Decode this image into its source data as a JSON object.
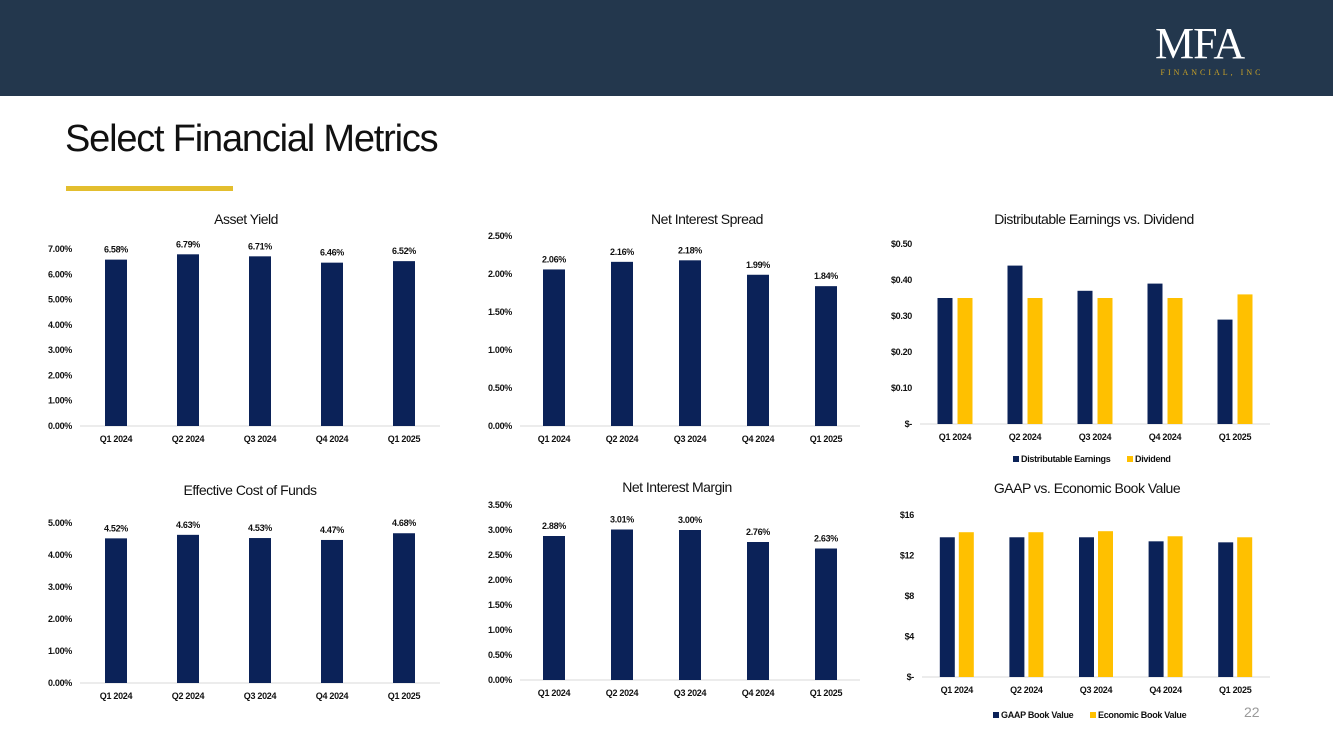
{
  "header": {
    "logo_main": "MFA",
    "logo_sub": "FINANCIAL, INC",
    "brand_color": "#23374D",
    "accent_color": "#E3BE2E"
  },
  "page": {
    "title": "Select Financial Metrics",
    "page_number": "22"
  },
  "colors": {
    "navy": "#0B2258",
    "gold": "#FFC000"
  },
  "chart_data": [
    {
      "id": "asset-yield",
      "type": "bar",
      "title": "Asset Yield",
      "categories": [
        "Q1 2024",
        "Q2 2024",
        "Q3 2024",
        "Q4 2024",
        "Q1 2025"
      ],
      "series": [
        {
          "name": "Asset Yield",
          "values": [
            6.58,
            6.79,
            6.71,
            6.46,
            6.52
          ],
          "color": "#0B2258"
        }
      ],
      "data_labels": [
        "6.58%",
        "6.79%",
        "6.71%",
        "6.46%",
        "6.52%"
      ],
      "ylim": [
        0,
        7
      ],
      "yticks": [
        0,
        1,
        2,
        3,
        4,
        5,
        6,
        7
      ],
      "ytick_labels": [
        "0.00%",
        "1.00%",
        "2.00%",
        "3.00%",
        "4.00%",
        "5.00%",
        "6.00%",
        "7.00%"
      ],
      "grid": false
    },
    {
      "id": "net-interest-spread",
      "type": "bar",
      "title": "Net Interest Spread",
      "categories": [
        "Q1 2024",
        "Q2 2024",
        "Q3 2024",
        "Q4 2024",
        "Q1 2025"
      ],
      "series": [
        {
          "name": "Net Interest Spread",
          "values": [
            2.06,
            2.16,
            2.18,
            1.99,
            1.84
          ],
          "color": "#0B2258"
        }
      ],
      "data_labels": [
        "2.06%",
        "2.16%",
        "2.18%",
        "1.99%",
        "1.84%"
      ],
      "ylim": [
        0,
        2.5
      ],
      "yticks": [
        0,
        0.5,
        1,
        1.5,
        2,
        2.5
      ],
      "ytick_labels": [
        "0.00%",
        "0.50%",
        "1.00%",
        "1.50%",
        "2.00%",
        "2.50%"
      ],
      "grid": false
    },
    {
      "id": "distributable-earnings",
      "type": "bar",
      "title": "Distributable Earnings vs. Dividend",
      "categories": [
        "Q1 2024",
        "Q2 2024",
        "Q3 2024",
        "Q4 2024",
        "Q1 2025"
      ],
      "series": [
        {
          "name": "Distributable Earnings",
          "values": [
            0.35,
            0.44,
            0.37,
            0.39,
            0.29
          ],
          "color": "#0B2258"
        },
        {
          "name": "Dividend",
          "values": [
            0.35,
            0.35,
            0.35,
            0.35,
            0.36
          ],
          "color": "#FFC000"
        }
      ],
      "ylim": [
        0,
        0.5
      ],
      "yticks": [
        0,
        0.1,
        0.2,
        0.3,
        0.4,
        0.5
      ],
      "ytick_labels": [
        "$-",
        "$0.10",
        "$0.20",
        "$0.30",
        "$0.40",
        "$0.50"
      ],
      "legend_position": "bottom",
      "grid": false
    },
    {
      "id": "cost-of-funds",
      "type": "bar",
      "title": "Effective  Cost of Funds",
      "categories": [
        "Q1 2024",
        "Q2 2024",
        "Q3 2024",
        "Q4 2024",
        "Q1 2025"
      ],
      "series": [
        {
          "name": "Effective Cost of Funds",
          "values": [
            4.52,
            4.63,
            4.53,
            4.47,
            4.68
          ],
          "color": "#0B2258"
        }
      ],
      "data_labels": [
        "4.52%",
        "4.63%",
        "4.53%",
        "4.47%",
        "4.68%"
      ],
      "ylim": [
        0,
        5
      ],
      "yticks": [
        0,
        1,
        2,
        3,
        4,
        5
      ],
      "ytick_labels": [
        "0.00%",
        "1.00%",
        "2.00%",
        "3.00%",
        "4.00%",
        "5.00%"
      ],
      "grid": false
    },
    {
      "id": "net-interest-margin",
      "type": "bar",
      "title": "Net Interest Margin",
      "categories": [
        "Q1 2024",
        "Q2 2024",
        "Q3 2024",
        "Q4 2024",
        "Q1 2025"
      ],
      "series": [
        {
          "name": "Net Interest Margin",
          "values": [
            2.88,
            3.01,
            3.0,
            2.76,
            2.63
          ],
          "color": "#0B2258"
        }
      ],
      "data_labels": [
        "2.88%",
        "3.01%",
        "3.00%",
        "2.76%",
        "2.63%"
      ],
      "ylim": [
        0,
        3.5
      ],
      "yticks": [
        0,
        0.5,
        1,
        1.5,
        2,
        2.5,
        3,
        3.5
      ],
      "ytick_labels": [
        "0.00%",
        "0.50%",
        "1.00%",
        "1.50%",
        "2.00%",
        "2.50%",
        "3.00%",
        "3.50%"
      ],
      "grid": false
    },
    {
      "id": "book-value",
      "type": "bar",
      "title": "GAAP vs. Economic Book Value",
      "categories": [
        "Q1 2024",
        "Q2 2024",
        "Q3 2024",
        "Q4 2024",
        "Q1 2025"
      ],
      "series": [
        {
          "name": "GAAP Book Value",
          "values": [
            13.8,
            13.8,
            13.8,
            13.4,
            13.3
          ],
          "color": "#0B2258"
        },
        {
          "name": "Economic Book Value",
          "values": [
            14.3,
            14.3,
            14.4,
            13.9,
            13.8
          ],
          "color": "#FFC000"
        }
      ],
      "ylim": [
        0,
        16
      ],
      "yticks": [
        0,
        4,
        8,
        12,
        16
      ],
      "ytick_labels": [
        "$-",
        "$4",
        "$8",
        "$12",
        "$16"
      ],
      "legend_position": "bottom",
      "grid": false
    }
  ]
}
